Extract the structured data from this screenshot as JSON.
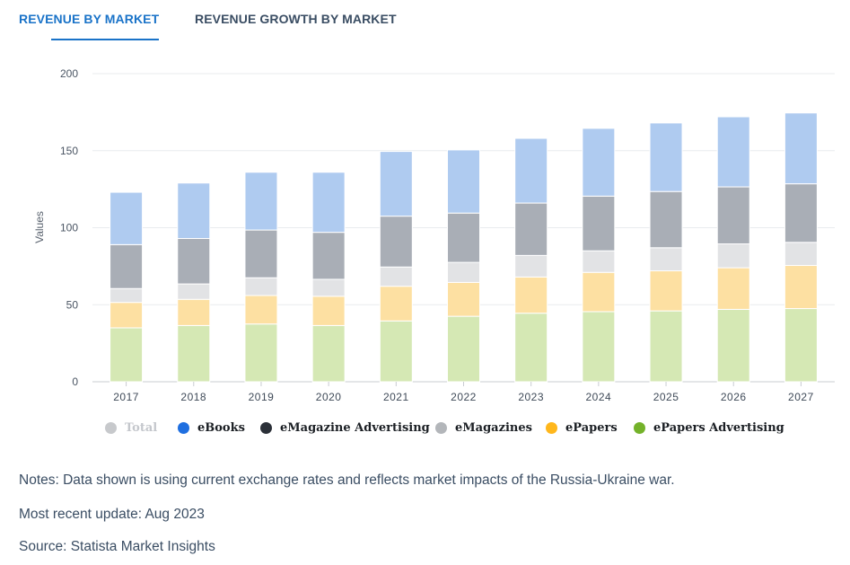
{
  "tabs": [
    {
      "label": "REVENUE BY MARKET",
      "active": true
    },
    {
      "label": "REVENUE GROWTH BY MARKET",
      "active": false
    }
  ],
  "legend": [
    {
      "label": "Total",
      "color": "#c7c9cc",
      "disabled": true
    },
    {
      "label": "eBooks",
      "color": "#1f6fe0",
      "disabled": false
    },
    {
      "label": "eMagazine Advertising",
      "color": "#2b3038",
      "disabled": false
    },
    {
      "label": "eMagazines",
      "color": "#b3b6ba",
      "disabled": false
    },
    {
      "label": "ePapers",
      "color": "#ffb71c",
      "disabled": false
    },
    {
      "label": "ePapers Advertising",
      "color": "#74b22a",
      "disabled": false
    }
  ],
  "notes": {
    "note": "Notes: Data shown is using current exchange rates and reflects market impacts of the Russia-Ukraine war.",
    "update": "Most recent update: Aug 2023",
    "source": "Source: Statista Market Insights"
  },
  "chart_data": {
    "type": "bar",
    "stacked": true,
    "title": "",
    "xlabel": "",
    "ylabel": "Values",
    "ylim": [
      0,
      200
    ],
    "yticks": [
      0,
      50,
      100,
      150,
      200
    ],
    "grid": true,
    "legend_position": "bottom",
    "categories": [
      "2017",
      "2018",
      "2019",
      "2020",
      "2021",
      "2022",
      "2023",
      "2024",
      "2025",
      "2026",
      "2027"
    ],
    "series": [
      {
        "name": "ePapers Advertising",
        "color": "#d5e8b4",
        "values": [
          35.0,
          36.5,
          37.5,
          36.5,
          39.5,
          42.5,
          44.5,
          45.5,
          46.0,
          47.0,
          47.5
        ]
      },
      {
        "name": "ePapers",
        "color": "#fde0a2",
        "values": [
          16.5,
          17.0,
          18.5,
          19.0,
          22.5,
          22.0,
          23.5,
          25.5,
          26.0,
          27.0,
          28.0
        ]
      },
      {
        "name": "eMagazines",
        "color": "#e2e3e5",
        "values": [
          9.0,
          10.0,
          11.5,
          11.0,
          12.5,
          13.0,
          14.0,
          14.0,
          15.0,
          15.5,
          15.0
        ]
      },
      {
        "name": "eMagazine Advertising",
        "color": "#a9aeb6",
        "values": [
          28.5,
          29.5,
          31.0,
          30.5,
          33.0,
          32.0,
          34.0,
          35.5,
          36.5,
          37.0,
          38.0
        ]
      },
      {
        "name": "eBooks",
        "color": "#afcbf0",
        "values": [
          34.0,
          36.0,
          37.5,
          39.0,
          42.0,
          41.0,
          42.0,
          44.0,
          44.5,
          45.5,
          46.0
        ]
      }
    ]
  }
}
